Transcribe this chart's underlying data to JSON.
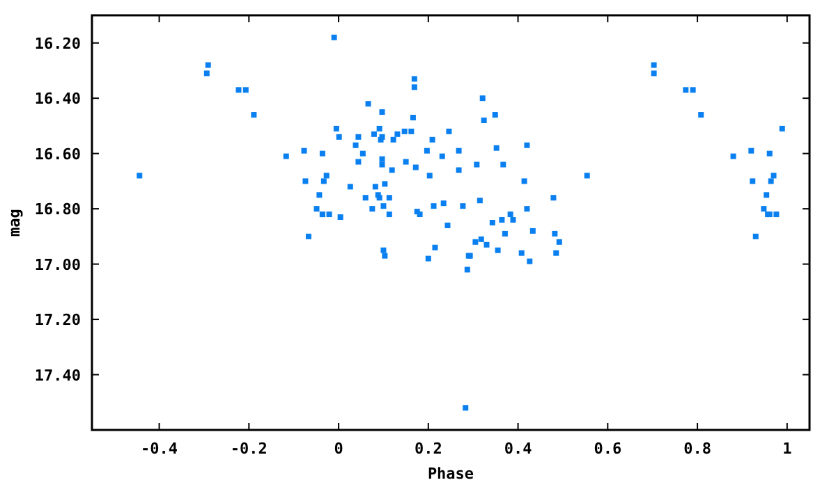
{
  "chart_data": {
    "type": "scatter",
    "xlabel": "Phase",
    "ylabel": "mag",
    "xlim": [
      -0.55,
      1.05
    ],
    "ylim": [
      17.6,
      16.1
    ],
    "xticks": [
      {
        "value": -0.4,
        "label": "-0.4"
      },
      {
        "value": -0.2,
        "label": "-0.2"
      },
      0,
      {
        "value": 0.2,
        "label": "0.2"
      },
      {
        "value": 0.4,
        "label": "0.4"
      },
      {
        "value": 0.6,
        "label": "0.6"
      },
      {
        "value": 0.8,
        "label": "0.8"
      },
      1
    ],
    "yticks": [
      {
        "value": 16.2,
        "label": "16.20"
      },
      {
        "value": 16.4,
        "label": "16.40"
      },
      {
        "value": 16.6,
        "label": "16.60"
      },
      {
        "value": 16.8,
        "label": "16.80"
      },
      {
        "value": 17.0,
        "label": "17.00"
      },
      {
        "value": 17.2,
        "label": "17.20"
      },
      {
        "value": 17.4,
        "label": "17.40"
      }
    ],
    "grid": false,
    "marker": "square",
    "series": [
      {
        "color": "#0a80f0",
        "x": [
          -0.444,
          -0.291,
          -0.294,
          -0.223,
          -0.207,
          -0.189,
          -0.117,
          -0.077,
          -0.036,
          -0.074,
          -0.027,
          -0.033,
          -0.043,
          -0.049,
          -0.036,
          -0.036,
          -0.021,
          -0.067,
          -0.01,
          0.169,
          0.169,
          0.321,
          0.066,
          0.097,
          0.166,
          0.324,
          0.349,
          -0.005,
          0.091,
          0.001,
          0.044,
          0.079,
          0.097,
          0.094,
          0.122,
          0.131,
          0.147,
          0.162,
          0.246,
          0.209,
          0.038,
          0.42,
          0.054,
          0.197,
          0.352,
          0.268,
          0.231,
          0.044,
          0.097,
          0.097,
          0.15,
          0.119,
          0.172,
          0.308,
          0.367,
          0.203,
          0.268,
          0.414,
          0.026,
          0.082,
          0.103,
          0.06,
          0.088,
          0.091,
          0.113,
          0.479,
          0.315,
          0.004,
          0.075,
          0.1,
          0.113,
          0.175,
          0.181,
          0.212,
          0.234,
          0.277,
          0.383,
          0.364,
          0.389,
          0.343,
          0.42,
          0.243,
          0.371,
          0.433,
          0.482,
          0.305,
          0.318,
          0.33,
          0.1,
          0.103,
          0.215,
          0.355,
          0.408,
          0.485,
          0.29,
          0.293,
          0.2,
          0.426,
          0.287,
          0.283,
          0.703,
          0.703,
          0.774,
          0.79,
          0.808,
          0.989,
          0.88,
          0.92,
          0.961,
          0.554,
          0.923,
          0.964,
          0.97,
          0.954,
          0.948,
          0.957,
          0.961,
          0.976,
          0.492,
          0.93
        ],
        "values": [
          16.68,
          16.28,
          16.31,
          16.37,
          16.37,
          16.46,
          16.61,
          16.59,
          16.6,
          16.7,
          16.68,
          16.7,
          16.75,
          16.8,
          16.82,
          16.82,
          16.82,
          16.9,
          16.18,
          16.33,
          16.36,
          16.4,
          16.42,
          16.45,
          16.47,
          16.48,
          16.46,
          16.51,
          16.51,
          16.54,
          16.54,
          16.53,
          16.54,
          16.55,
          16.55,
          16.53,
          16.52,
          16.52,
          16.52,
          16.55,
          16.57,
          16.57,
          16.6,
          16.59,
          16.58,
          16.59,
          16.61,
          16.63,
          16.62,
          16.64,
          16.63,
          16.66,
          16.65,
          16.64,
          16.64,
          16.68,
          16.66,
          16.7,
          16.72,
          16.72,
          16.71,
          16.76,
          16.75,
          16.76,
          16.76,
          16.76,
          16.77,
          16.83,
          16.8,
          16.79,
          16.82,
          16.81,
          16.82,
          16.79,
          16.78,
          16.79,
          16.82,
          16.84,
          16.84,
          16.85,
          16.8,
          16.86,
          16.89,
          16.88,
          16.89,
          16.92,
          16.91,
          16.93,
          16.95,
          16.97,
          16.94,
          16.95,
          16.96,
          16.96,
          16.97,
          16.97,
          16.98,
          16.99,
          17.02,
          17.52,
          16.28,
          16.31,
          16.37,
          16.37,
          16.46,
          16.51,
          16.61,
          16.59,
          16.6,
          16.68,
          16.7,
          16.7,
          16.68,
          16.75,
          16.8,
          16.82,
          16.82,
          16.82,
          16.92,
          16.9
        ]
      }
    ]
  }
}
